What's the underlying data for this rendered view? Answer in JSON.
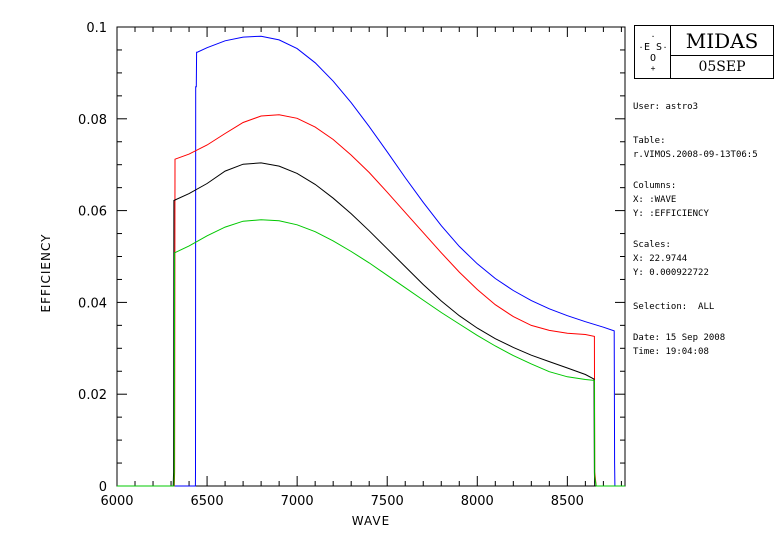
{
  "chart_data": {
    "type": "line",
    "xlabel": "WAVE",
    "ylabel": "EFFICIENCY",
    "xlim": [
      6000,
      8820
    ],
    "ylim": [
      0,
      0.1
    ],
    "x_ticks": [
      "6000",
      "6500",
      "7000",
      "7500",
      "8000",
      "8500"
    ],
    "y_ticks": [
      "0",
      "0.02",
      "0.04",
      "0.06",
      "0.08",
      "0.1"
    ],
    "grid": false,
    "series": [
      {
        "color": "#0000ff",
        "x": [
          6000,
          6435,
          6436,
          6437,
          6440,
          6442,
          6446,
          6500,
          6600,
          6700,
          6800,
          6900,
          7000,
          7100,
          7200,
          7300,
          7400,
          7500,
          7600,
          7700,
          7800,
          7900,
          8000,
          8100,
          8200,
          8300,
          8400,
          8500,
          8600,
          8700,
          8760,
          8762,
          8764,
          8780,
          8820
        ],
        "y": [
          0,
          0,
          0.003,
          0.087,
          0.087,
          0.0945,
          0.0945,
          0.0955,
          0.097,
          0.0978,
          0.098,
          0.0972,
          0.0953,
          0.0922,
          0.0882,
          0.0835,
          0.0783,
          0.0728,
          0.0672,
          0.0618,
          0.0567,
          0.0522,
          0.0484,
          0.0452,
          0.0426,
          0.0404,
          0.0386,
          0.0371,
          0.0358,
          0.0346,
          0.0338,
          0.005,
          0,
          0,
          0
        ]
      },
      {
        "color": "#ff0000",
        "x": [
          6000,
          6318,
          6320,
          6322,
          6400,
          6500,
          6600,
          6700,
          6800,
          6900,
          7000,
          7100,
          7200,
          7300,
          7400,
          7500,
          7600,
          7700,
          7800,
          7900,
          8000,
          8100,
          8200,
          8300,
          8400,
          8500,
          8600,
          8650,
          8651,
          8652,
          8660,
          8820
        ],
        "y": [
          0,
          0,
          0.003,
          0.0712,
          0.0723,
          0.0743,
          0.0768,
          0.0792,
          0.0806,
          0.0809,
          0.0801,
          0.0782,
          0.0755,
          0.0721,
          0.0683,
          0.064,
          0.0596,
          0.0552,
          0.0508,
          0.0466,
          0.0428,
          0.0395,
          0.0369,
          0.035,
          0.0339,
          0.0333,
          0.033,
          0.0326,
          0.015,
          0.003,
          0,
          0
        ]
      },
      {
        "color": "#000000",
        "x": [
          6000,
          6312,
          6314,
          6316,
          6400,
          6500,
          6600,
          6700,
          6800,
          6900,
          7000,
          7100,
          7200,
          7300,
          7400,
          7500,
          7600,
          7700,
          7800,
          7900,
          8000,
          8100,
          8200,
          8300,
          8400,
          8500,
          8600,
          8648,
          8650,
          8652,
          8820
        ],
        "y": [
          0,
          0,
          0.003,
          0.0622,
          0.0637,
          0.0659,
          0.0686,
          0.0701,
          0.0704,
          0.0697,
          0.0681,
          0.0657,
          0.0627,
          0.0593,
          0.0556,
          0.0517,
          0.0478,
          0.0439,
          0.0403,
          0.0371,
          0.0344,
          0.0321,
          0.0302,
          0.0285,
          0.0271,
          0.0257,
          0.0243,
          0.0233,
          0.003,
          0,
          0
        ]
      },
      {
        "color": "#00c800",
        "x": [
          6000,
          6316,
          6318,
          6320,
          6400,
          6500,
          6600,
          6700,
          6800,
          6900,
          7000,
          7100,
          7200,
          7300,
          7400,
          7500,
          7600,
          7700,
          7800,
          7900,
          8000,
          8100,
          8200,
          8300,
          8400,
          8500,
          8600,
          8650,
          8651,
          8652,
          8660,
          8820
        ],
        "y": [
          0,
          0,
          0.003,
          0.0508,
          0.0523,
          0.0545,
          0.0564,
          0.0577,
          0.058,
          0.0578,
          0.0569,
          0.0554,
          0.0534,
          0.0511,
          0.0486,
          0.0459,
          0.0432,
          0.0405,
          0.0378,
          0.0353,
          0.0328,
          0.0305,
          0.0284,
          0.0266,
          0.0249,
          0.0238,
          0.0232,
          0.023,
          0.01,
          0.002,
          0,
          0
        ]
      }
    ]
  },
  "panel": {
    "logo_title": "MIDAS",
    "logo_date": "05SEP",
    "logo_seal": "ESO",
    "user": "User: astro3",
    "table_label": "Table:",
    "table_value": "r.VIMOS.2008-09-13T06:5",
    "columns_label": "Columns:",
    "columns_x": "X: :WAVE",
    "columns_y": "Y: :EFFICIENCY",
    "scales_label": "Scales:",
    "scales_x": "X: 22.9744",
    "scales_y": "Y: 0.000922722",
    "selection": "Selection:  ALL",
    "date": "Date: 15 Sep 2008",
    "time": "Time: 19:04:08"
  }
}
